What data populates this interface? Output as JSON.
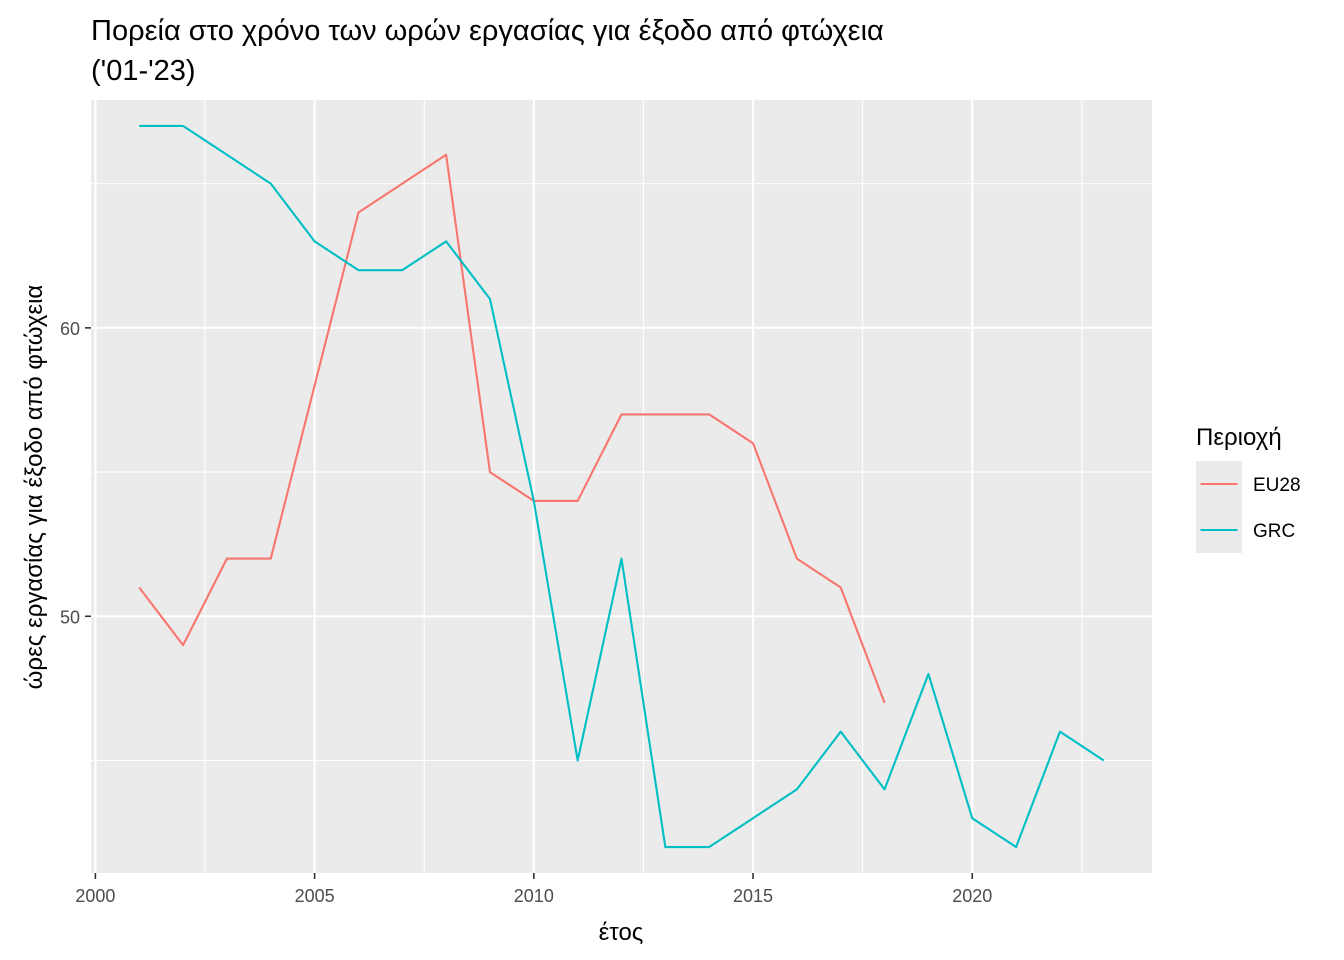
{
  "chart_data": {
    "type": "line",
    "title_lines": [
      "Πορεία στο χρόνο των ωρών εργασίας για έξοδο από φτώχεια",
      "('01-'23)"
    ],
    "xlabel": "έτος",
    "ylabel": "ώρες εργασίας για έξοδο από φτώχεια",
    "xlim": [
      1999.9,
      2024.1
    ],
    "ylim": [
      41.1,
      67.9
    ],
    "x_ticks": [
      2000,
      2005,
      2010,
      2015,
      2020
    ],
    "x_tick_labels": [
      "2000",
      "2005",
      "2010",
      "2015",
      "2020"
    ],
    "x_minor_ticks": [
      2002.5,
      2007.5,
      2012.5,
      2017.5,
      2022.5
    ],
    "y_ticks": [
      50,
      60
    ],
    "y_tick_labels": [
      "50",
      "60"
    ],
    "y_minor_ticks": [
      45,
      55,
      65
    ],
    "grid": true,
    "legend": {
      "title": "Περιοχή",
      "position": "right"
    },
    "series": [
      {
        "name": "EU28",
        "color": "#F8766D",
        "x": [
          2001,
          2002,
          2003,
          2004,
          2005,
          2006,
          2007,
          2008,
          2009,
          2010,
          2011,
          2012,
          2013,
          2014,
          2015,
          2016,
          2017,
          2018
        ],
        "y": [
          51,
          49,
          52,
          52,
          58,
          64,
          65,
          66,
          55,
          54,
          54,
          57,
          57,
          57,
          56,
          52,
          51,
          47
        ]
      },
      {
        "name": "GRC",
        "color": "#00BFC4",
        "x": [
          2001,
          2002,
          2003,
          2004,
          2005,
          2006,
          2007,
          2008,
          2009,
          2010,
          2011,
          2012,
          2013,
          2014,
          2015,
          2016,
          2017,
          2018,
          2019,
          2020,
          2021,
          2022,
          2023
        ],
        "y": [
          67,
          67,
          66,
          65,
          63,
          62,
          62,
          63,
          61,
          54,
          45,
          52,
          42,
          42,
          43,
          44,
          46,
          44,
          48,
          43,
          42,
          46,
          45
        ]
      }
    ]
  }
}
